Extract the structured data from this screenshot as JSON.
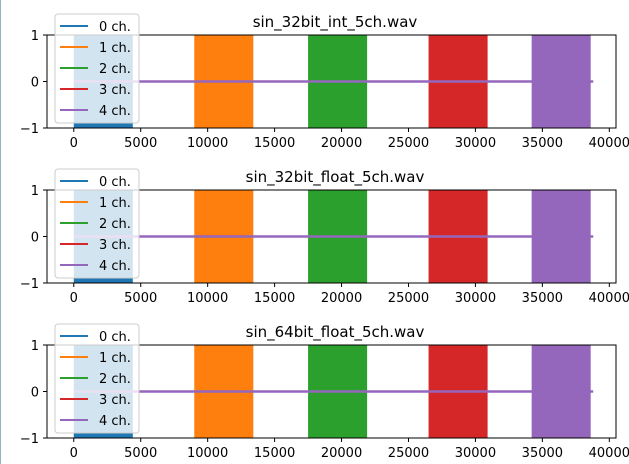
{
  "chart_data": [
    {
      "type": "line",
      "title": "sin_32bit_int_5ch.wav",
      "xlabel": "",
      "ylabel": "",
      "xlim": [
        -2000,
        40500
      ],
      "ylim": [
        -1,
        1
      ],
      "xticks": [
        0,
        5000,
        10000,
        15000,
        20000,
        25000,
        30000,
        35000,
        40000
      ],
      "yticks": [
        -1,
        0,
        1
      ],
      "legend_position": "top-left",
      "series": [
        {
          "name": "0 ch.",
          "color": "#1f77b4",
          "x_start": 0,
          "x_end": 4410,
          "amplitude": 1.0
        },
        {
          "name": "1 ch.",
          "color": "#ff7f0e",
          "x_start": 9000,
          "x_end": 13410,
          "amplitude": 1.0
        },
        {
          "name": "2 ch.",
          "color": "#2ca02c",
          "x_start": 17500,
          "x_end": 21910,
          "amplitude": 1.0
        },
        {
          "name": "3 ch.",
          "color": "#d62728",
          "x_start": 26500,
          "x_end": 30910,
          "amplitude": 1.0
        },
        {
          "name": "4 ch.",
          "color": "#9467bd",
          "x_start": 34200,
          "x_end": 38610,
          "amplitude": 1.0
        }
      ],
      "baseline": {
        "x_start": 0,
        "x_end": 38800,
        "color": "#9467bd"
      }
    },
    {
      "type": "line",
      "title": "sin_32bit_float_5ch.wav",
      "xlabel": "",
      "ylabel": "",
      "xlim": [
        -2000,
        40500
      ],
      "ylim": [
        -1,
        1
      ],
      "xticks": [
        0,
        5000,
        10000,
        15000,
        20000,
        25000,
        30000,
        35000,
        40000
      ],
      "yticks": [
        -1,
        0,
        1
      ],
      "legend_position": "top-left",
      "series": [
        {
          "name": "0 ch.",
          "color": "#1f77b4",
          "x_start": 0,
          "x_end": 4410,
          "amplitude": 1.0
        },
        {
          "name": "1 ch.",
          "color": "#ff7f0e",
          "x_start": 9000,
          "x_end": 13410,
          "amplitude": 1.0
        },
        {
          "name": "2 ch.",
          "color": "#2ca02c",
          "x_start": 17500,
          "x_end": 21910,
          "amplitude": 1.0
        },
        {
          "name": "3 ch.",
          "color": "#d62728",
          "x_start": 26500,
          "x_end": 30910,
          "amplitude": 1.0
        },
        {
          "name": "4 ch.",
          "color": "#9467bd",
          "x_start": 34200,
          "x_end": 38610,
          "amplitude": 1.0
        }
      ],
      "baseline": {
        "x_start": 0,
        "x_end": 38800,
        "color": "#9467bd"
      }
    },
    {
      "type": "line",
      "title": "sin_64bit_float_5ch.wav",
      "xlabel": "",
      "ylabel": "",
      "xlim": [
        -2000,
        40500
      ],
      "ylim": [
        -1,
        1
      ],
      "xticks": [
        0,
        5000,
        10000,
        15000,
        20000,
        25000,
        30000,
        35000,
        40000
      ],
      "yticks": [
        -1,
        0,
        1
      ],
      "legend_position": "top-left",
      "series": [
        {
          "name": "0 ch.",
          "color": "#1f77b4",
          "x_start": 0,
          "x_end": 4410,
          "amplitude": 1.0
        },
        {
          "name": "1 ch.",
          "color": "#ff7f0e",
          "x_start": 9000,
          "x_end": 13410,
          "amplitude": 1.0
        },
        {
          "name": "2 ch.",
          "color": "#2ca02c",
          "x_start": 17500,
          "x_end": 21910,
          "amplitude": 1.0
        },
        {
          "name": "3 ch.",
          "color": "#d62728",
          "x_start": 26500,
          "x_end": 30910,
          "amplitude": 1.0
        },
        {
          "name": "4 ch.",
          "color": "#9467bd",
          "x_start": 34200,
          "x_end": 38610,
          "amplitude": 1.0
        }
      ],
      "baseline": {
        "x_start": 0,
        "x_end": 38800,
        "color": "#9467bd"
      }
    }
  ]
}
